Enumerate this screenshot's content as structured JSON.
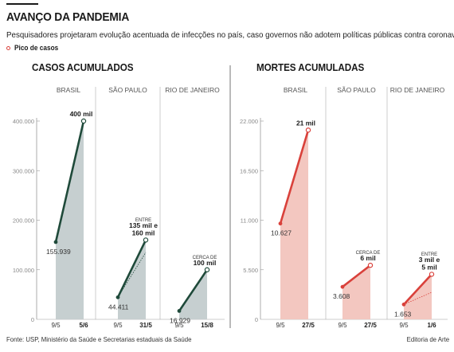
{
  "header": {
    "title": "AVANÇO DA PANDEMIA",
    "subtitle": "Pesquisadores projetaram evolução acentuada de infecções no país, caso governos não adotem políticas públicas contra coronavírus",
    "legend_label": "Pico de casos"
  },
  "footer": {
    "source": "Fonte: USP, Ministério da Saúde e Secretarias estaduais da Saúde",
    "credit": "Editoria de Arte"
  },
  "colors": {
    "casos_line": "#1f4a3a",
    "casos_fill": "#c3ccce",
    "mortes_line": "#d9413b",
    "mortes_fill": "#f2c4bd",
    "peak_marker": "#d9413b"
  },
  "chart_data": [
    {
      "type": "area",
      "title": "CASOS ACUMULADOS",
      "ylim": [
        0,
        400000
      ],
      "yticks": [
        0,
        100000,
        400000
      ],
      "ytick_labels": [
        "0",
        "100.000",
        "400.000"
      ],
      "extra_tick_labels": [
        {
          "value": 200000,
          "label": "200.000"
        },
        {
          "value": 300000,
          "label": "300.000"
        }
      ],
      "grid": false,
      "panels": [
        {
          "name": "BRASIL",
          "x": [
            "9/5",
            "5/6"
          ],
          "y": [
            155939,
            400000
          ],
          "start_label": "155.939",
          "end_label_lines": [
            "400 mil"
          ]
        },
        {
          "name": "SÃO PAULO",
          "x": [
            "9/5",
            "31/5"
          ],
          "y": [
            44411,
            160000
          ],
          "y_low": 135000,
          "start_label": "44.411",
          "end_label_prefix": "ENTRE",
          "end_label_lines": [
            "135 mil e",
            "160 mil"
          ]
        },
        {
          "name": "RIO DE JANEIRO",
          "x": [
            "9/5",
            "15/8"
          ],
          "y": [
            16929,
            100000
          ],
          "start_label": "16.929",
          "end_label_prefix": "CERCA DE",
          "end_label_lines": [
            "100 mil"
          ]
        }
      ]
    },
    {
      "type": "area",
      "title": "MORTES ACUMULADAS",
      "ylim": [
        0,
        22000
      ],
      "yticks": [
        0,
        5500,
        11000,
        16500,
        22000
      ],
      "ytick_labels": [
        "0",
        "5.500",
        "11.000",
        "16.500",
        "22.000"
      ],
      "grid": false,
      "panels": [
        {
          "name": "BRASIL",
          "x": [
            "9/5",
            "27/5"
          ],
          "y": [
            10627,
            21000
          ],
          "start_label": "10.627",
          "end_label_lines": [
            "21 mil"
          ]
        },
        {
          "name": "SÃO PAULO",
          "x": [
            "9/5",
            "27/5"
          ],
          "y": [
            3608,
            6000
          ],
          "start_label": "3.608",
          "end_label_prefix": "CERCA DE",
          "end_label_lines": [
            "6 mil"
          ]
        },
        {
          "name": "RIO DE JANEIRO",
          "x": [
            "9/5",
            "1/6"
          ],
          "y": [
            1653,
            5000
          ],
          "y_low": 3000,
          "start_label": "1.653",
          "end_label_prefix": "ENTRE",
          "end_label_lines": [
            "3 mil e",
            "5 mil"
          ]
        }
      ]
    }
  ]
}
